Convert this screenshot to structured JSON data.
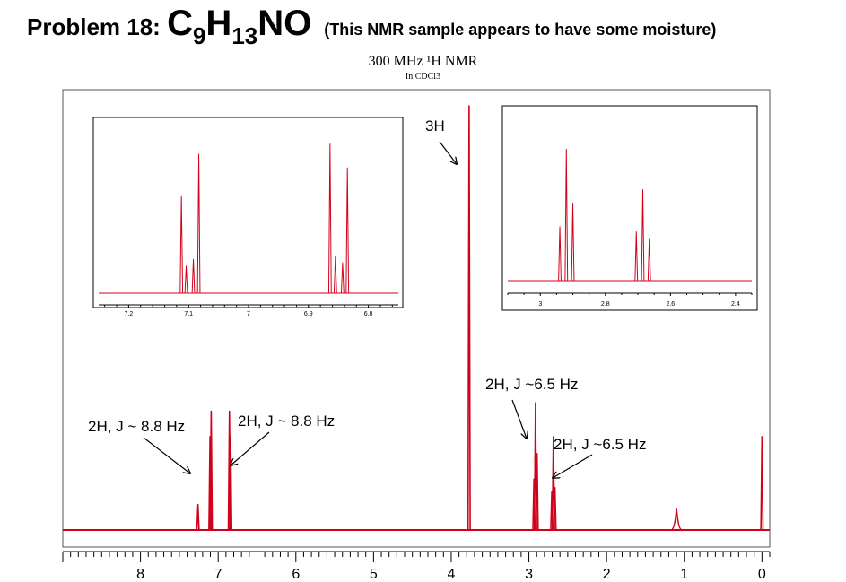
{
  "title": {
    "prefix": "Problem 18: ",
    "formula_parts": [
      "C",
      "9",
      "H",
      "13",
      "NO"
    ],
    "note": "(This NMR sample appears to have some moisture)"
  },
  "subtitle": "300 MHz ¹H NMR",
  "solvent": "In CDCl3",
  "colors": {
    "spectrum": "#d0021b",
    "axis": "#000000",
    "frame": "#555555"
  },
  "chart_data": [
    {
      "type": "line",
      "name": "main-spectrum",
      "xlabel": "",
      "ylabel": "",
      "xlim": [
        9.0,
        -0.1
      ],
      "x_ticks": [
        8,
        7,
        6,
        5,
        4,
        3,
        2,
        1,
        0
      ],
      "peaks": [
        {
          "ppm": 7.26,
          "height": 0.06
        },
        {
          "ppm": 7.105,
          "height": 0.22
        },
        {
          "ppm": 7.09,
          "height": 0.28
        },
        {
          "ppm": 6.855,
          "height": 0.28
        },
        {
          "ppm": 6.84,
          "height": 0.22
        },
        {
          "ppm": 3.77,
          "height": 1.0
        },
        {
          "ppm": 2.935,
          "height": 0.12
        },
        {
          "ppm": 2.915,
          "height": 0.3
        },
        {
          "ppm": 2.895,
          "height": 0.18
        },
        {
          "ppm": 2.705,
          "height": 0.09
        },
        {
          "ppm": 2.685,
          "height": 0.22
        },
        {
          "ppm": 2.665,
          "height": 0.1
        },
        {
          "ppm": 1.1,
          "height": 0.05,
          "broad": true
        },
        {
          "ppm": 0.0,
          "height": 0.22
        }
      ],
      "annotations": [
        {
          "text": "3H",
          "ppm": 3.77
        },
        {
          "text": "2H, J ~ 8.8 Hz",
          "ppm": 7.1
        },
        {
          "text": "2H, J ~ 8.8 Hz",
          "ppm": 6.85
        },
        {
          "text": "2H, J ~6.5 Hz",
          "ppm": 2.915
        },
        {
          "text": "2H, J ~6.5 Hz",
          "ppm": 2.685
        }
      ]
    },
    {
      "type": "line",
      "name": "inset-aromatic",
      "xlim": [
        7.25,
        6.75
      ],
      "x_ticks": [
        7.2,
        7.1,
        7.0,
        6.9,
        6.8
      ],
      "peaks": [
        {
          "ppm": 7.112,
          "height": 0.57
        },
        {
          "ppm": 7.104,
          "height": 0.16
        },
        {
          "ppm": 7.092,
          "height": 0.2
        },
        {
          "ppm": 7.083,
          "height": 0.82
        },
        {
          "ppm": 6.864,
          "height": 0.88
        },
        {
          "ppm": 6.855,
          "height": 0.22
        },
        {
          "ppm": 6.843,
          "height": 0.18
        },
        {
          "ppm": 6.835,
          "height": 0.74
        }
      ]
    },
    {
      "type": "line",
      "name": "inset-aliphatic",
      "xlim": [
        3.1,
        2.35
      ],
      "x_ticks": [
        3.0,
        2.8,
        2.6,
        2.4
      ],
      "peaks": [
        {
          "ppm": 2.94,
          "height": 0.32
        },
        {
          "ppm": 2.92,
          "height": 0.78
        },
        {
          "ppm": 2.9,
          "height": 0.46
        },
        {
          "ppm": 2.705,
          "height": 0.29
        },
        {
          "ppm": 2.685,
          "height": 0.54
        },
        {
          "ppm": 2.665,
          "height": 0.25
        }
      ]
    }
  ]
}
